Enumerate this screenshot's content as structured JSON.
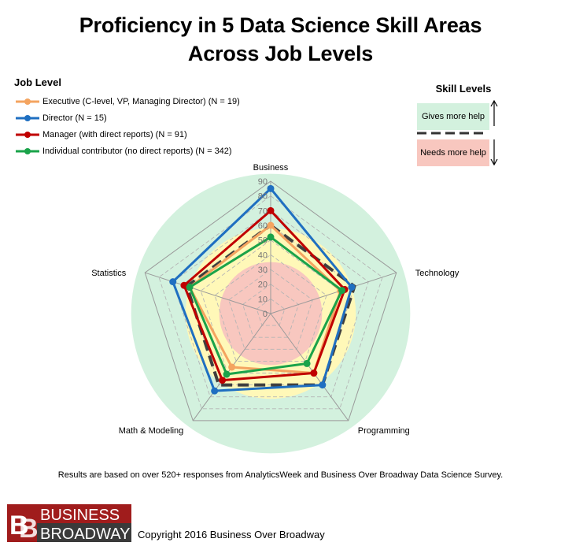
{
  "title_line1": "Proficiency in 5 Data Science Skill Areas",
  "title_line2": "Across Job Levels",
  "legend": {
    "title": "Job Level",
    "items": [
      {
        "label": "Executive (C-level, VP, Managing Director)  (N = 19)",
        "color": "#f4a460"
      },
      {
        "label": "Director (N = 15)",
        "color": "#1f6fc1"
      },
      {
        "label": "Manager (with direct reports)  (N = 91)",
        "color": "#c00000"
      },
      {
        "label": "Individual contributor  (no direct reports)  (N = 342)",
        "color": "#1aa34a"
      }
    ]
  },
  "skill_levels": {
    "title": "Skill Levels",
    "gives_help": "Gives more help",
    "needs_help": "Needs more help"
  },
  "chart_data": {
    "type": "radar",
    "axes": [
      "Business",
      "Technology",
      "Programming",
      "Math & Modeling",
      "Statistics"
    ],
    "scale": {
      "min": 0,
      "max": 90,
      "step": 10
    },
    "ticks": [
      "0",
      "10",
      "20",
      "30",
      "40",
      "50",
      "60",
      "70",
      "80",
      "90"
    ],
    "series": [
      {
        "name": "Executive (C-level, VP, Managing Director)  (N = 19)",
        "color": "#f4a460",
        "values": [
          60,
          50,
          50,
          45,
          58
        ]
      },
      {
        "name": "Director (N = 15)",
        "color": "#1f6fc1",
        "values": [
          85,
          58,
          60,
          65,
          70
        ]
      },
      {
        "name": "Manager (with direct reports)  (N = 91)",
        "color": "#c00000",
        "values": [
          70,
          53,
          50,
          56,
          62
        ]
      },
      {
        "name": "Individual contributor  (no direct reports)  (N = 342)",
        "color": "#1aa34a",
        "values": [
          52,
          51,
          42,
          51,
          58
        ]
      }
    ],
    "threshold": {
      "value": 60,
      "style": "dashed"
    },
    "background_zones": [
      {
        "from": 0,
        "to": 35,
        "color": "#f8c7bf"
      },
      {
        "from": 35,
        "to": 58,
        "color": "#fff8b8"
      },
      {
        "from": 58,
        "to": 95,
        "color": "#d3f1de"
      }
    ]
  },
  "footnote": "Results are based on over 520+ responses from AnalyticsWeek and Business Over Broadway Data Science Survey.",
  "logo": {
    "line1": "BUSINESS",
    "line2": "BROADWAY",
    "mark": "B"
  },
  "copyright": "Copyright 2016 Business Over Broadway"
}
